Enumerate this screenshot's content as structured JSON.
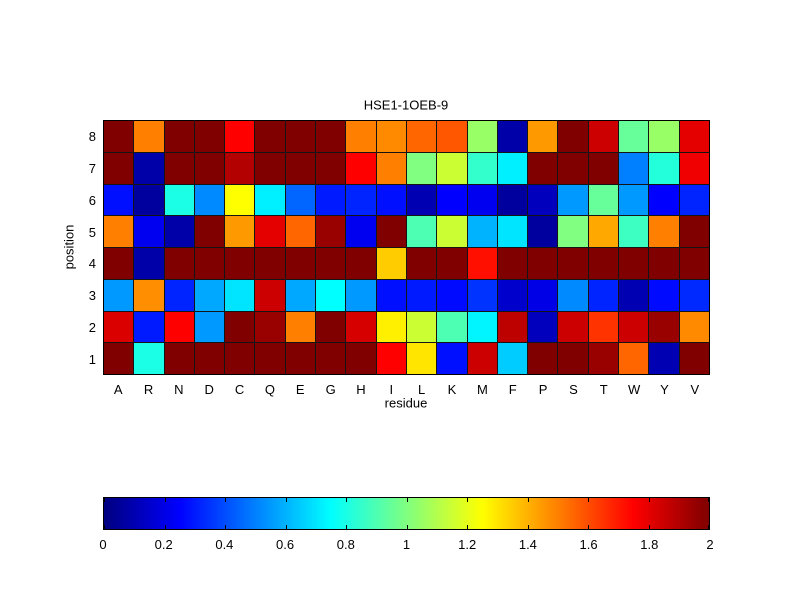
{
  "chart_data": {
    "type": "heatmap",
    "title": "HSE1-1OEB-9",
    "xlabel": "residue",
    "ylabel": "position",
    "x_categories": [
      "A",
      "R",
      "N",
      "D",
      "C",
      "Q",
      "E",
      "G",
      "H",
      "I",
      "L",
      "K",
      "M",
      "F",
      "P",
      "S",
      "T",
      "W",
      "Y",
      "V"
    ],
    "y_categories": [
      "8",
      "7",
      "6",
      "5",
      "4",
      "3",
      "2",
      "1"
    ],
    "values": [
      [
        2.0,
        1.5,
        2.0,
        2.0,
        1.75,
        2.0,
        2.0,
        2.0,
        1.5,
        1.48,
        1.55,
        1.58,
        1.05,
        0.08,
        1.45,
        2.0,
        1.85,
        0.95,
        1.05,
        1.8
      ],
      [
        2.0,
        0.08,
        2.0,
        2.0,
        1.9,
        2.0,
        2.0,
        2.0,
        1.75,
        1.5,
        1.0,
        1.15,
        0.85,
        0.72,
        2.0,
        2.0,
        2.0,
        0.5,
        0.82,
        1.78
      ],
      [
        0.28,
        0.06,
        0.8,
        0.52,
        1.25,
        0.72,
        0.45,
        0.3,
        0.32,
        0.28,
        0.1,
        0.25,
        0.22,
        0.06,
        0.12,
        0.55,
        0.95,
        0.55,
        0.25,
        0.32
      ],
      [
        1.5,
        0.22,
        0.08,
        2.0,
        1.45,
        1.8,
        1.55,
        1.95,
        0.22,
        2.0,
        0.9,
        1.15,
        0.6,
        0.7,
        0.06,
        1.0,
        1.42,
        0.87,
        1.5,
        2.0
      ],
      [
        2.0,
        0.08,
        2.0,
        2.0,
        2.0,
        2.0,
        2.0,
        2.0,
        2.0,
        1.35,
        2.0,
        2.0,
        1.72,
        2.0,
        2.0,
        2.0,
        2.0,
        2.0,
        2.0,
        2.0
      ],
      [
        0.55,
        1.47,
        0.32,
        0.58,
        0.7,
        1.85,
        0.58,
        0.75,
        0.55,
        0.28,
        0.3,
        0.27,
        0.35,
        0.15,
        0.2,
        0.52,
        0.32,
        0.1,
        0.27,
        0.33
      ],
      [
        1.82,
        0.3,
        1.75,
        0.55,
        2.0,
        1.95,
        1.5,
        2.0,
        1.83,
        1.28,
        1.15,
        0.9,
        0.73,
        1.88,
        0.12,
        1.85,
        1.65,
        1.85,
        1.95,
        1.48
      ],
      [
        2.0,
        0.8,
        2.0,
        2.0,
        2.0,
        2.0,
        2.0,
        2.0,
        2.0,
        1.75,
        1.3,
        0.28,
        1.85,
        0.65,
        2.0,
        2.0,
        1.95,
        1.55,
        0.1,
        2.0
      ]
    ],
    "colormap": "jet",
    "color_range": [
      0,
      2
    ],
    "colorbar_tick_labels": [
      "0",
      "0.2",
      "0.4",
      "0.6",
      "0.8",
      "1",
      "1.2",
      "1.4",
      "1.6",
      "1.8",
      "2"
    ],
    "grid_line_color": "#000000",
    "background_color": "#ffffff",
    "legend_position": "colorbar-bottom",
    "grid": "cell-borders-on"
  }
}
